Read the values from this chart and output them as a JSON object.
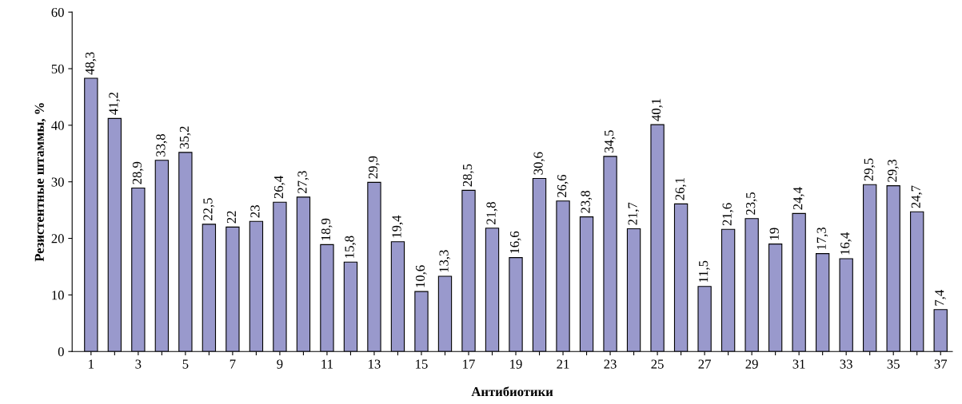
{
  "chart_data": {
    "type": "bar",
    "xlabel": "Антибиотики",
    "ylabel": "Резистентные штаммы, %",
    "categories": [
      "1",
      null,
      "3",
      null,
      "5",
      null,
      "7",
      null,
      "9",
      null,
      "11",
      null,
      "13",
      null,
      "15",
      null,
      "17",
      null,
      "19",
      null,
      "21",
      null,
      "23",
      null,
      "25",
      null,
      "27",
      null,
      "29",
      null,
      "31",
      null,
      "33",
      null,
      "35",
      null,
      "37"
    ],
    "values": [
      48.3,
      41.2,
      28.9,
      33.8,
      35.2,
      22.5,
      22,
      23,
      26.4,
      27.3,
      18.9,
      15.8,
      29.9,
      19.4,
      10.6,
      13.3,
      28.5,
      21.8,
      16.6,
      30.6,
      26.6,
      23.8,
      34.5,
      21.7,
      40.1,
      26.1,
      11.5,
      21.6,
      23.5,
      19,
      24.4,
      17.3,
      16.4,
      29.5,
      29.3,
      24.7,
      7.4
    ],
    "value_labels": [
      "48,3",
      "41,2",
      "28,9",
      "33,8",
      "35,2",
      "22,5",
      "22",
      "23",
      "26,4",
      "27,3",
      "18,9",
      "15,8",
      "29,9",
      "19,4",
      "10,6",
      "13,3",
      "28,5",
      "21,8",
      "16,6",
      "30,6",
      "26,6",
      "23,8",
      "34,5",
      "21,7",
      "40,1",
      "26,1",
      "11,5",
      "21,6",
      "23,5",
      "19",
      "24,4",
      "17,3",
      "16,4",
      "29,5",
      "29,3",
      "24,7",
      "7,4"
    ],
    "color": "#9999cc",
    "ylim": [
      0,
      60
    ],
    "yticks": [
      0,
      10,
      20,
      30,
      40,
      50,
      60
    ],
    "grid": false,
    "legend": false
  }
}
